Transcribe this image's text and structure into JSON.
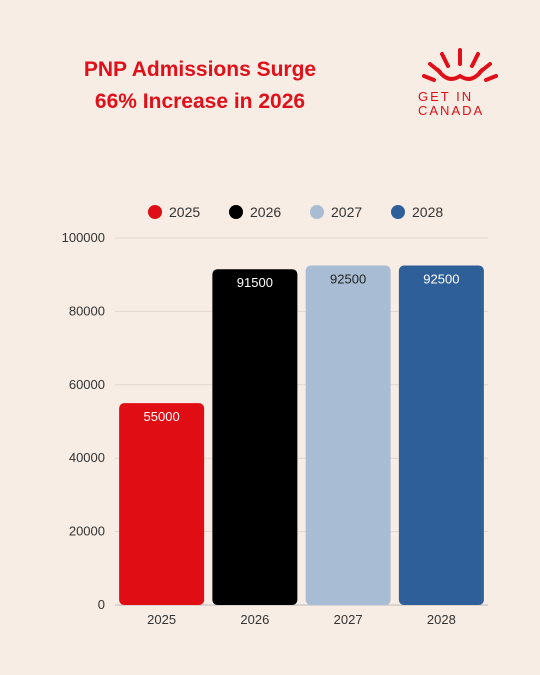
{
  "title_lines": [
    "PNP Admissions Surge",
    "66% Increase in 2026"
  ],
  "logo": {
    "line1": "GET IN",
    "line2": "CANADA",
    "color": "#e0101a"
  },
  "colors": {
    "background": "#f8ede4",
    "title": "#e0101a"
  },
  "chart_data": {
    "type": "bar",
    "categories": [
      "2025",
      "2026",
      "2027",
      "2028"
    ],
    "values": [
      55000,
      91500,
      92500,
      92500
    ],
    "series": [
      {
        "name": "2025",
        "value": 55000,
        "color": "#e00d14",
        "label_color": "#ffffff"
      },
      {
        "name": "2026",
        "value": 91500,
        "color": "#000000",
        "label_color": "#ffffff"
      },
      {
        "name": "2027",
        "value": 92500,
        "color": "#a8bcd4",
        "label_color": "#222222"
      },
      {
        "name": "2028",
        "value": 92500,
        "color": "#2f5f98",
        "label_color": "#ffffff"
      }
    ],
    "ylim": [
      0,
      100000
    ],
    "yticks": [
      "0",
      "20000",
      "40000",
      "60000",
      "80000",
      "100000"
    ],
    "grid": true,
    "legend_position": "top"
  }
}
